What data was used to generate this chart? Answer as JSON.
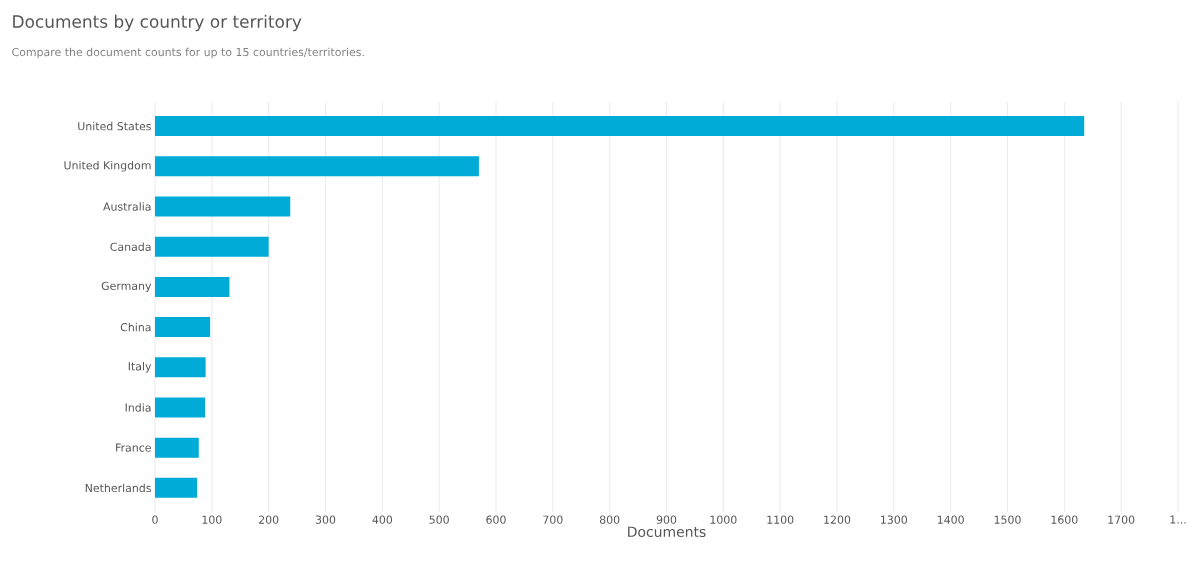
{
  "chart_data": {
    "type": "bar",
    "orientation": "horizontal",
    "title": "Documents by country or territory",
    "subtitle": "Compare the document counts for up to 15 countries/territories.",
    "xlabel": "Documents",
    "categories": [
      "United States",
      "United Kingdom",
      "Australia",
      "Canada",
      "Germany",
      "China",
      "Italy",
      "India",
      "France",
      "Netherlands"
    ],
    "values": [
      1635,
      570,
      238,
      200,
      131,
      97,
      89,
      88,
      77,
      74
    ],
    "color": "#00acd7",
    "xlim": [
      0,
      1800
    ],
    "xticks": [
      0,
      100,
      200,
      300,
      400,
      500,
      600,
      700,
      800,
      900,
      1000,
      1100,
      1200,
      1300,
      1400,
      1500,
      1600,
      1700,
      {
        "value": 1800,
        "label": "1..."
      }
    ],
    "grid": "x"
  }
}
